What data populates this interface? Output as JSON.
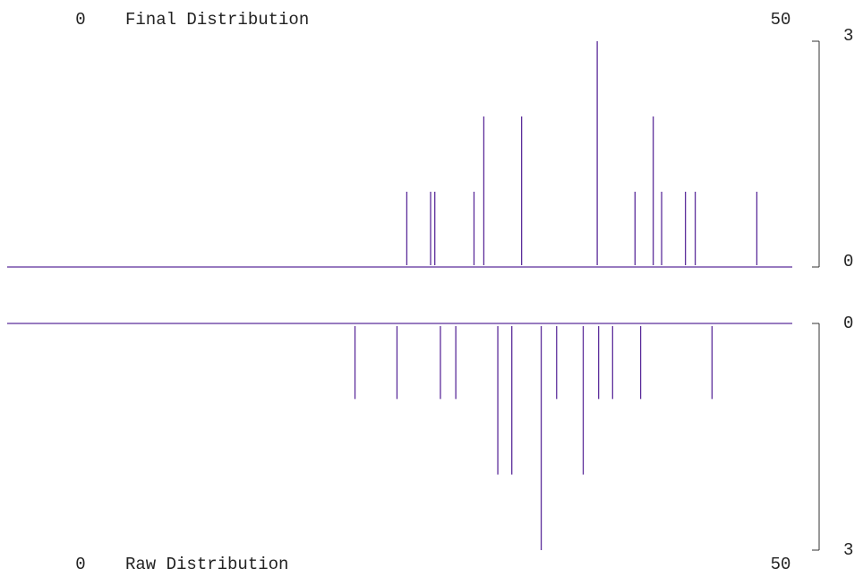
{
  "chart_data": [
    {
      "type": "spike",
      "title": "Final Distribution",
      "direction": "up",
      "color": "#5b2c9a",
      "xlim": [
        0,
        50
      ],
      "xticks": [
        0,
        50
      ],
      "ylim": [
        0,
        3
      ],
      "yticks": [
        0,
        3
      ],
      "x": [
        23.3,
        25.0,
        25.3,
        28.1,
        28.8,
        31.5,
        36.9,
        39.6,
        40.9,
        41.5,
        43.2,
        43.9,
        48.3
      ],
      "values": [
        1,
        1,
        1,
        1,
        2,
        2,
        3,
        1,
        2,
        1,
        1,
        1,
        1
      ]
    },
    {
      "type": "spike",
      "title": "Raw Distribution",
      "direction": "down",
      "color": "#5b2c9a",
      "xlim": [
        0,
        50
      ],
      "xticks": [
        0,
        50
      ],
      "ylim": [
        0,
        3
      ],
      "yticks": [
        0,
        3
      ],
      "x": [
        19.6,
        22.6,
        25.7,
        26.8,
        29.8,
        30.8,
        32.9,
        34.0,
        35.9,
        37.0,
        38.0,
        40.0,
        45.1
      ],
      "values": [
        1,
        1,
        1,
        1,
        2,
        2,
        3,
        1,
        2,
        1,
        1,
        1,
        1
      ]
    }
  ]
}
